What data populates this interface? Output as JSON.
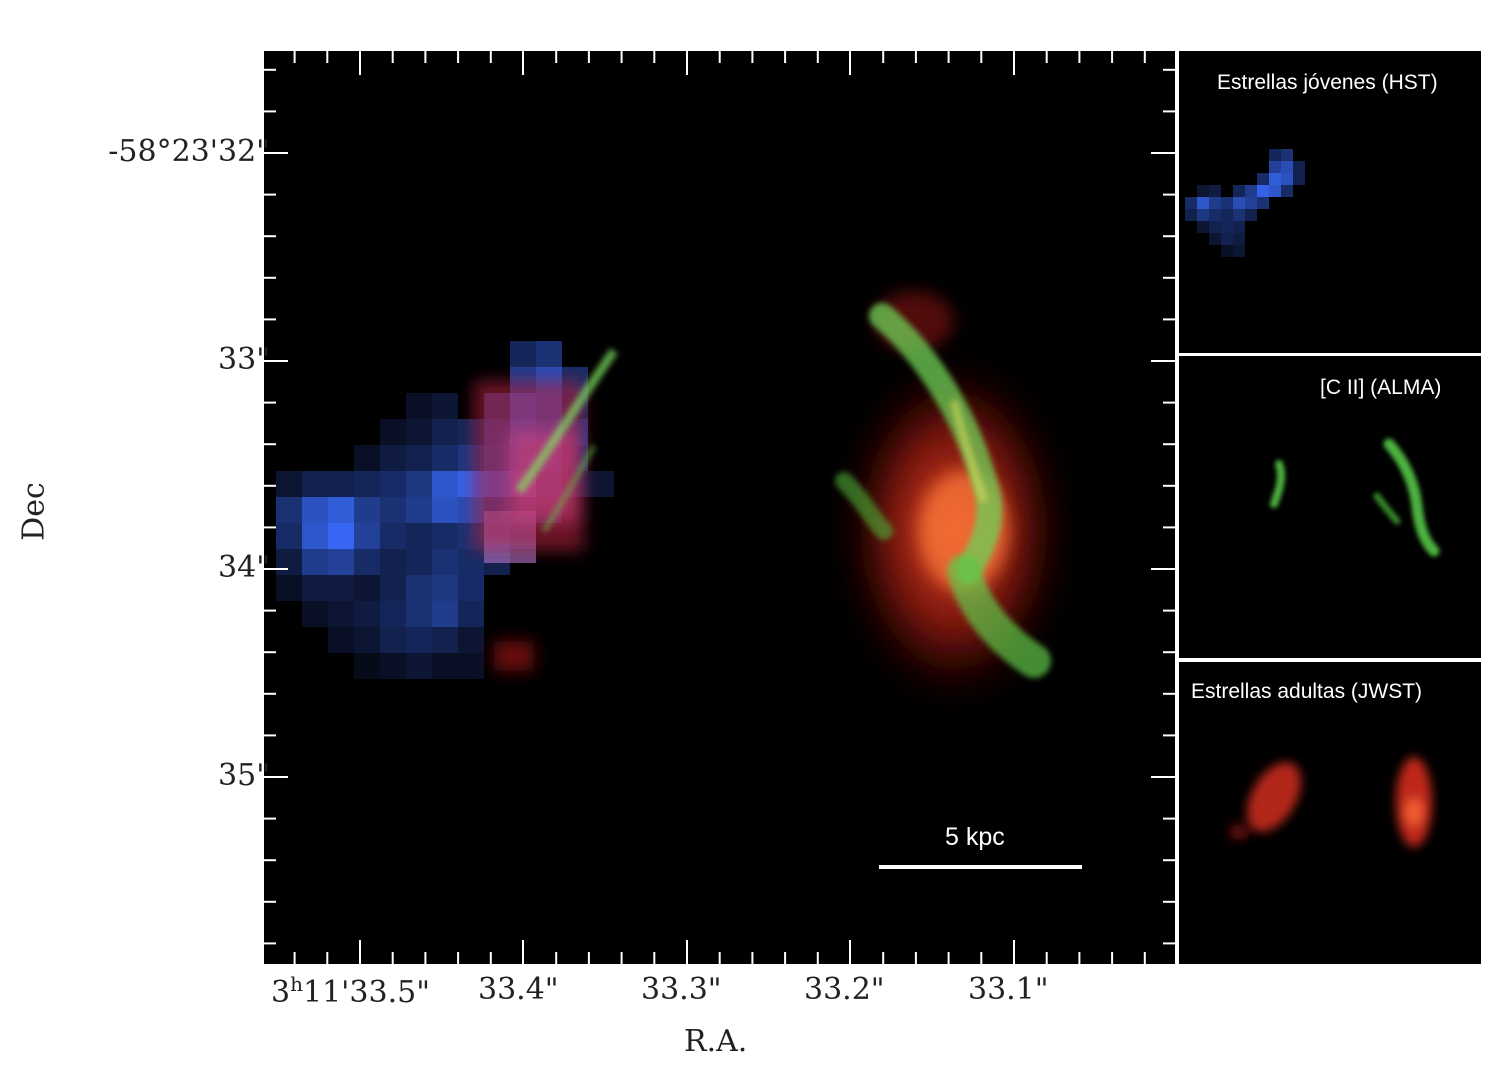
{
  "axes": {
    "x_title": "R.A.",
    "y_title": "Dec",
    "x_ticks": [
      {
        "prefix": "3",
        "sup": "h",
        "rest": "11'33.5\""
      },
      {
        "text": "33.4\""
      },
      {
        "text": "33.3\""
      },
      {
        "text": "33.2\""
      },
      {
        "text": "33.1\""
      }
    ],
    "y_ticks": [
      "-58°23'32\"",
      "33\"",
      "34\"",
      "35\""
    ]
  },
  "scalebar": {
    "label": "5 kpc"
  },
  "insets": {
    "hst": {
      "label": "Estrellas jóvenes (HST)",
      "color": "#3a6dff"
    },
    "cii": {
      "label": "[C II] (ALMA)",
      "color": "#5ad04a"
    },
    "jwst": {
      "label": "Estrellas adultas  (JWST)",
      "color": "#e0301e"
    }
  },
  "colors": {
    "background": "#000000",
    "young_stars": "#3a6dff",
    "cii_gas": "#5ad04a",
    "adult_stars": "#e0301e"
  }
}
